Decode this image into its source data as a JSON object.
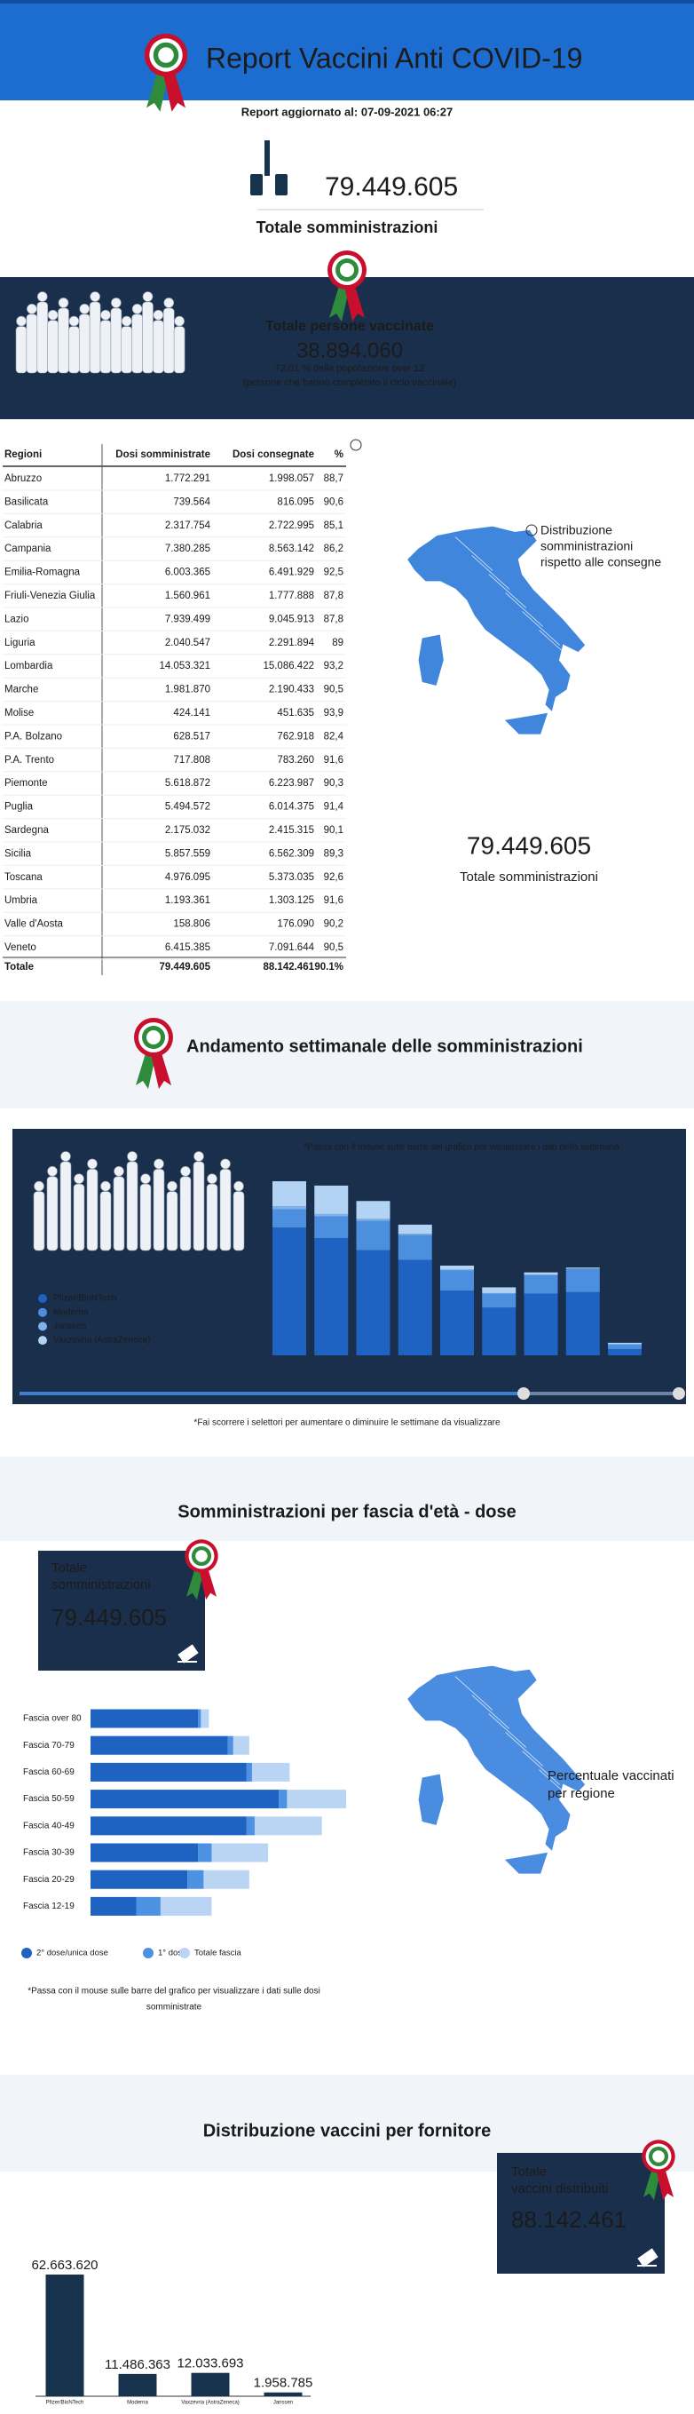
{
  "header": {
    "title": "Report Vaccini Anti COVID-19",
    "updated": "Report aggiornato al: 07-09-2021 06:27"
  },
  "summary": {
    "value": "79.449.605",
    "label": "Totale somministrazioni"
  },
  "vaccinated": {
    "title": "Totale persone vaccinate",
    "value": "38.894.060",
    "note": "72,01 % della popolazione over 12",
    "subnote": "(persone che hanno completato il ciclo vaccinale)"
  },
  "regions_table": {
    "columns": [
      "Regioni",
      "Dosi somministrate",
      "Dosi consegnate",
      "%"
    ],
    "rows": [
      [
        "Abruzzo",
        "1.772.291",
        "1.998.057",
        "88,7"
      ],
      [
        "Basilicata",
        "739.564",
        "816.095",
        "90,6"
      ],
      [
        "Calabria",
        "2.317.754",
        "2.722.995",
        "85,1"
      ],
      [
        "Campania",
        "7.380.285",
        "8.563.142",
        "86,2"
      ],
      [
        "Emilia-Romagna",
        "6.003.365",
        "6.491.929",
        "92,5"
      ],
      [
        "Friuli-Venezia Giulia",
        "1.560.961",
        "1.777.888",
        "87,8"
      ],
      [
        "Lazio",
        "7.939.499",
        "9.045.913",
        "87,8"
      ],
      [
        "Liguria",
        "2.040.547",
        "2.291.894",
        "89"
      ],
      [
        "Lombardia",
        "14.053.321",
        "15.086.422",
        "93,2"
      ],
      [
        "Marche",
        "1.981.870",
        "2.190.433",
        "90,5"
      ],
      [
        "Molise",
        "424.141",
        "451.635",
        "93,9"
      ],
      [
        "P.A. Bolzano",
        "628.517",
        "762.918",
        "82,4"
      ],
      [
        "P.A. Trento",
        "717.808",
        "783.260",
        "91,6"
      ],
      [
        "Piemonte",
        "5.618.872",
        "6.223.987",
        "90,3"
      ],
      [
        "Puglia",
        "5.494.572",
        "6.014.375",
        "91,4"
      ],
      [
        "Sardegna",
        "2.175.032",
        "2.415.315",
        "90,1"
      ],
      [
        "Sicilia",
        "5.857.559",
        "6.562.309",
        "89,3"
      ],
      [
        "Toscana",
        "4.976.095",
        "5.373.035",
        "92,6"
      ],
      [
        "Umbria",
        "1.193.361",
        "1.303.125",
        "91,6"
      ],
      [
        "Valle d'Aosta",
        "158.806",
        "176.090",
        "90,2"
      ],
      [
        "Veneto",
        "6.415.385",
        "7.091.644",
        "90,5"
      ]
    ],
    "total": [
      "Totale",
      "79.449.605",
      "88.142.461",
      "90.1%"
    ]
  },
  "regions_map": {
    "caption": [
      "Distribuzione",
      "somministrazioni",
      "rispetto alle consegne"
    ],
    "value": "79.449.605",
    "label": "Totale somministrazioni"
  },
  "weekly": {
    "title": "Andamento settimanale delle somministrazioni",
    "hint": "*Passa con il mouse sulle barre del grafico per visualizzare i dati della settimana",
    "slider_hint": "*Fai scorrere i selettori per aumentare o diminuire le settimane da visualizzare"
  },
  "age": {
    "title": "Somministrazioni per fascia d'età - dose",
    "box_label": [
      "Totale",
      "somministrazioni"
    ],
    "box_value": "79.449.605",
    "hint": [
      "*Passa con il mouse sulle barre del grafico per visualizzare i dati sulle dosi",
      "somministrate"
    ],
    "map_caption": [
      "Percentuale vaccinati",
      "per regione"
    ]
  },
  "supplier": {
    "title": "Distribuzione vaccini per fornitore",
    "box_label": [
      "Totale",
      "vaccini distribuiti"
    ],
    "box_value": "88.142.461"
  },
  "chart_data": [
    {
      "type": "stacked_bar",
      "categories": [
        null,
        null,
        null,
        null,
        null,
        null,
        null,
        null,
        null
      ],
      "series": [
        {
          "name": "Pfizer/BioNTech",
          "color": "#1f63c2",
          "values": [
            2650,
            2430,
            2180,
            1980,
            1340,
            990,
            1280,
            1310,
            130
          ]
        },
        {
          "name": "Moderna",
          "color": "#4d8fdf",
          "values": [
            380,
            450,
            610,
            510,
            420,
            290,
            380,
            480,
            100
          ]
        },
        {
          "name": "Janssen",
          "color": "#7fb2ec",
          "values": [
            60,
            50,
            40,
            30,
            20,
            10,
            10,
            10,
            0
          ]
        },
        {
          "name": "Vaxzevria (AstraZeneca)",
          "color": "#b3d3f4",
          "values": [
            520,
            590,
            370,
            190,
            80,
            120,
            50,
            20,
            30
          ]
        }
      ]
    },
    {
      "type": "hbar_overlay",
      "categories": [
        "Fascia over 80",
        "Fascia 70-79",
        "Fascia 60-69",
        "Fascia 50-59",
        "Fascia 40-49",
        "Fascia 30-39",
        "Fascia 20-29",
        "Fascia 12-19"
      ],
      "series": [
        {
          "name": "2° dose/unica dose",
          "color": "#1f63c2",
          "values": [
            4.0,
            5.1,
            5.8,
            7.0,
            5.8,
            4.0,
            3.6,
            1.7
          ]
        },
        {
          "name": "1° dose",
          "color": "#4d91e3",
          "values": [
            0.1,
            0.2,
            0.2,
            0.3,
            0.3,
            0.5,
            0.6,
            0.9
          ]
        },
        {
          "name": "Totale fascia",
          "color": "#b9d5f3",
          "values": [
            4.4,
            5.9,
            7.4,
            9.5,
            8.6,
            6.6,
            5.9,
            4.5
          ]
        }
      ]
    },
    {
      "type": "bar",
      "categories": [
        "Pfizer/BioNTech",
        "Moderna",
        "Vaxzevria (AstraZeneca)",
        "Janssen"
      ],
      "values": [
        62663620,
        11486363,
        12033693,
        1958785
      ],
      "value_labels": [
        "62.663.620",
        "11.486.363",
        "12.033.693",
        "1.958.785"
      ],
      "color": "#17324d"
    }
  ]
}
